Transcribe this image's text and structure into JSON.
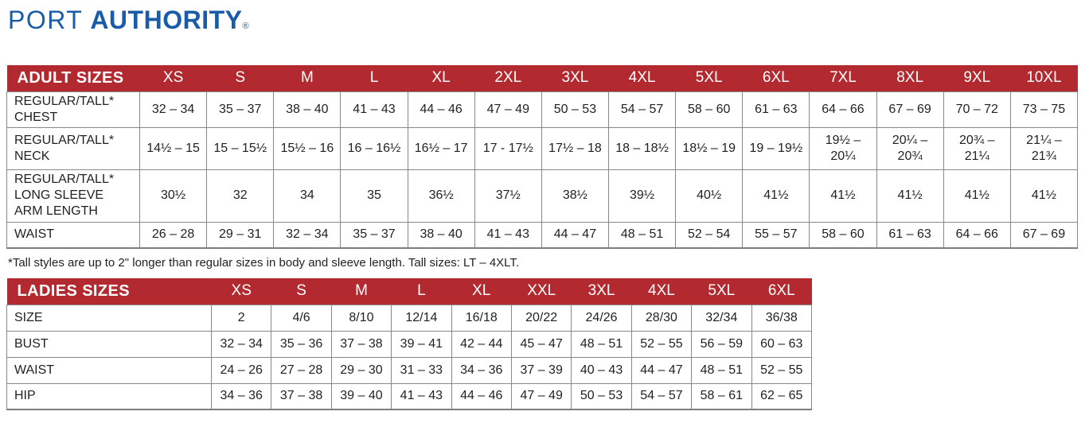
{
  "logo": {
    "port": "PORT",
    "authority": "AUTHORITY",
    "registered": "®"
  },
  "colors": {
    "header_red": "#b2292f",
    "logo_blue": "#1a5ca8",
    "border_gray": "#87888a",
    "text": "#231f20"
  },
  "tables": {
    "adult": {
      "title": "ADULT SIZES",
      "columns": [
        "XS",
        "S",
        "M",
        "L",
        "XL",
        "2XL",
        "3XL",
        "4XL",
        "5XL",
        "6XL",
        "7XL",
        "8XL",
        "9XL",
        "10XL"
      ],
      "rows": [
        {
          "label": "REGULAR/TALL*\nCHEST",
          "values": [
            "32 – 34",
            "35 – 37",
            "38 – 40",
            "41 – 43",
            "44 – 46",
            "47 – 49",
            "50 – 53",
            "54 – 57",
            "58 – 60",
            "61 – 63",
            "64 – 66",
            "67 – 69",
            "70 – 72",
            "73 – 75"
          ]
        },
        {
          "label": "REGULAR/TALL*\nNECK",
          "values": [
            "14½ – 15",
            "15 – 15½",
            "15½ – 16",
            "16 – 16½",
            "16½ – 17",
            "17 - 17½",
            "17½ – 18",
            "18 – 18½",
            "18½ – 19",
            "19 – 19½",
            "19½ –\n20¼",
            "20¼ –\n20¾",
            "20¾ –\n21¼",
            "21¼ –\n21¾"
          ]
        },
        {
          "label": "REGULAR/TALL*\nLONG SLEEVE\nARM LENGTH",
          "values": [
            "30½",
            "32",
            "34",
            "35",
            "36½",
            "37½",
            "38½",
            "39½",
            "40½",
            "41½",
            "41½",
            "41½",
            "41½",
            "41½"
          ]
        },
        {
          "label": "WAIST",
          "values": [
            "26 – 28",
            "29 – 31",
            "32 – 34",
            "35 – 37",
            "38 – 40",
            "41 – 43",
            "44 – 47",
            "48 – 51",
            "52 – 54",
            "55 – 57",
            "58 – 60",
            "61 – 63",
            "64 – 66",
            "67 – 69"
          ]
        }
      ]
    },
    "ladies": {
      "title": "LADIES SIZES",
      "columns": [
        "XS",
        "S",
        "M",
        "L",
        "XL",
        "XXL",
        "3XL",
        "4XL",
        "5XL",
        "6XL"
      ],
      "rows": [
        {
          "label": "SIZE",
          "values": [
            "2",
            "4/6",
            "8/10",
            "12/14",
            "16/18",
            "20/22",
            "24/26",
            "28/30",
            "32/34",
            "36/38"
          ]
        },
        {
          "label": "BUST",
          "values": [
            "32 – 34",
            "35 – 36",
            "37 – 38",
            "39 – 41",
            "42 – 44",
            "45 – 47",
            "48 – 51",
            "52 – 55",
            "56 – 59",
            "60 – 63"
          ]
        },
        {
          "label": "WAIST",
          "values": [
            "24 – 26",
            "27 – 28",
            "29 – 30",
            "31 – 33",
            "34 – 36",
            "37 – 39",
            "40 – 43",
            "44 – 47",
            "48 – 51",
            "52 – 55"
          ]
        },
        {
          "label": "HIP",
          "values": [
            "34 – 36",
            "37 – 38",
            "39 – 40",
            "41 – 43",
            "44 – 46",
            "47 – 49",
            "50 – 53",
            "54 – 57",
            "58 – 61",
            "62 – 65"
          ]
        }
      ]
    }
  },
  "footnote": "*Tall styles are up to 2\" longer than regular sizes in body and sleeve length. Tall sizes: LT – 4XLT."
}
